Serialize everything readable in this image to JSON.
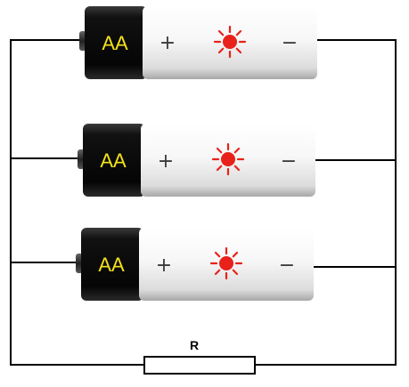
{
  "batteries": [
    {
      "type_label": "AA",
      "positive_sign": "+",
      "negative_sign": "−",
      "icon": "sun-icon"
    },
    {
      "type_label": "AA",
      "positive_sign": "+",
      "negative_sign": "−",
      "icon": "sun-icon"
    },
    {
      "type_label": "AA",
      "positive_sign": "+",
      "negative_sign": "−",
      "icon": "sun-icon"
    }
  ],
  "resistor": {
    "label": "R"
  },
  "colors": {
    "wire": "#000000",
    "label_yellow": "#f3e21a",
    "sun_red": "#e8221a",
    "battery_body": "#f3f3f3",
    "battery_cap": "#0a0a0a"
  }
}
